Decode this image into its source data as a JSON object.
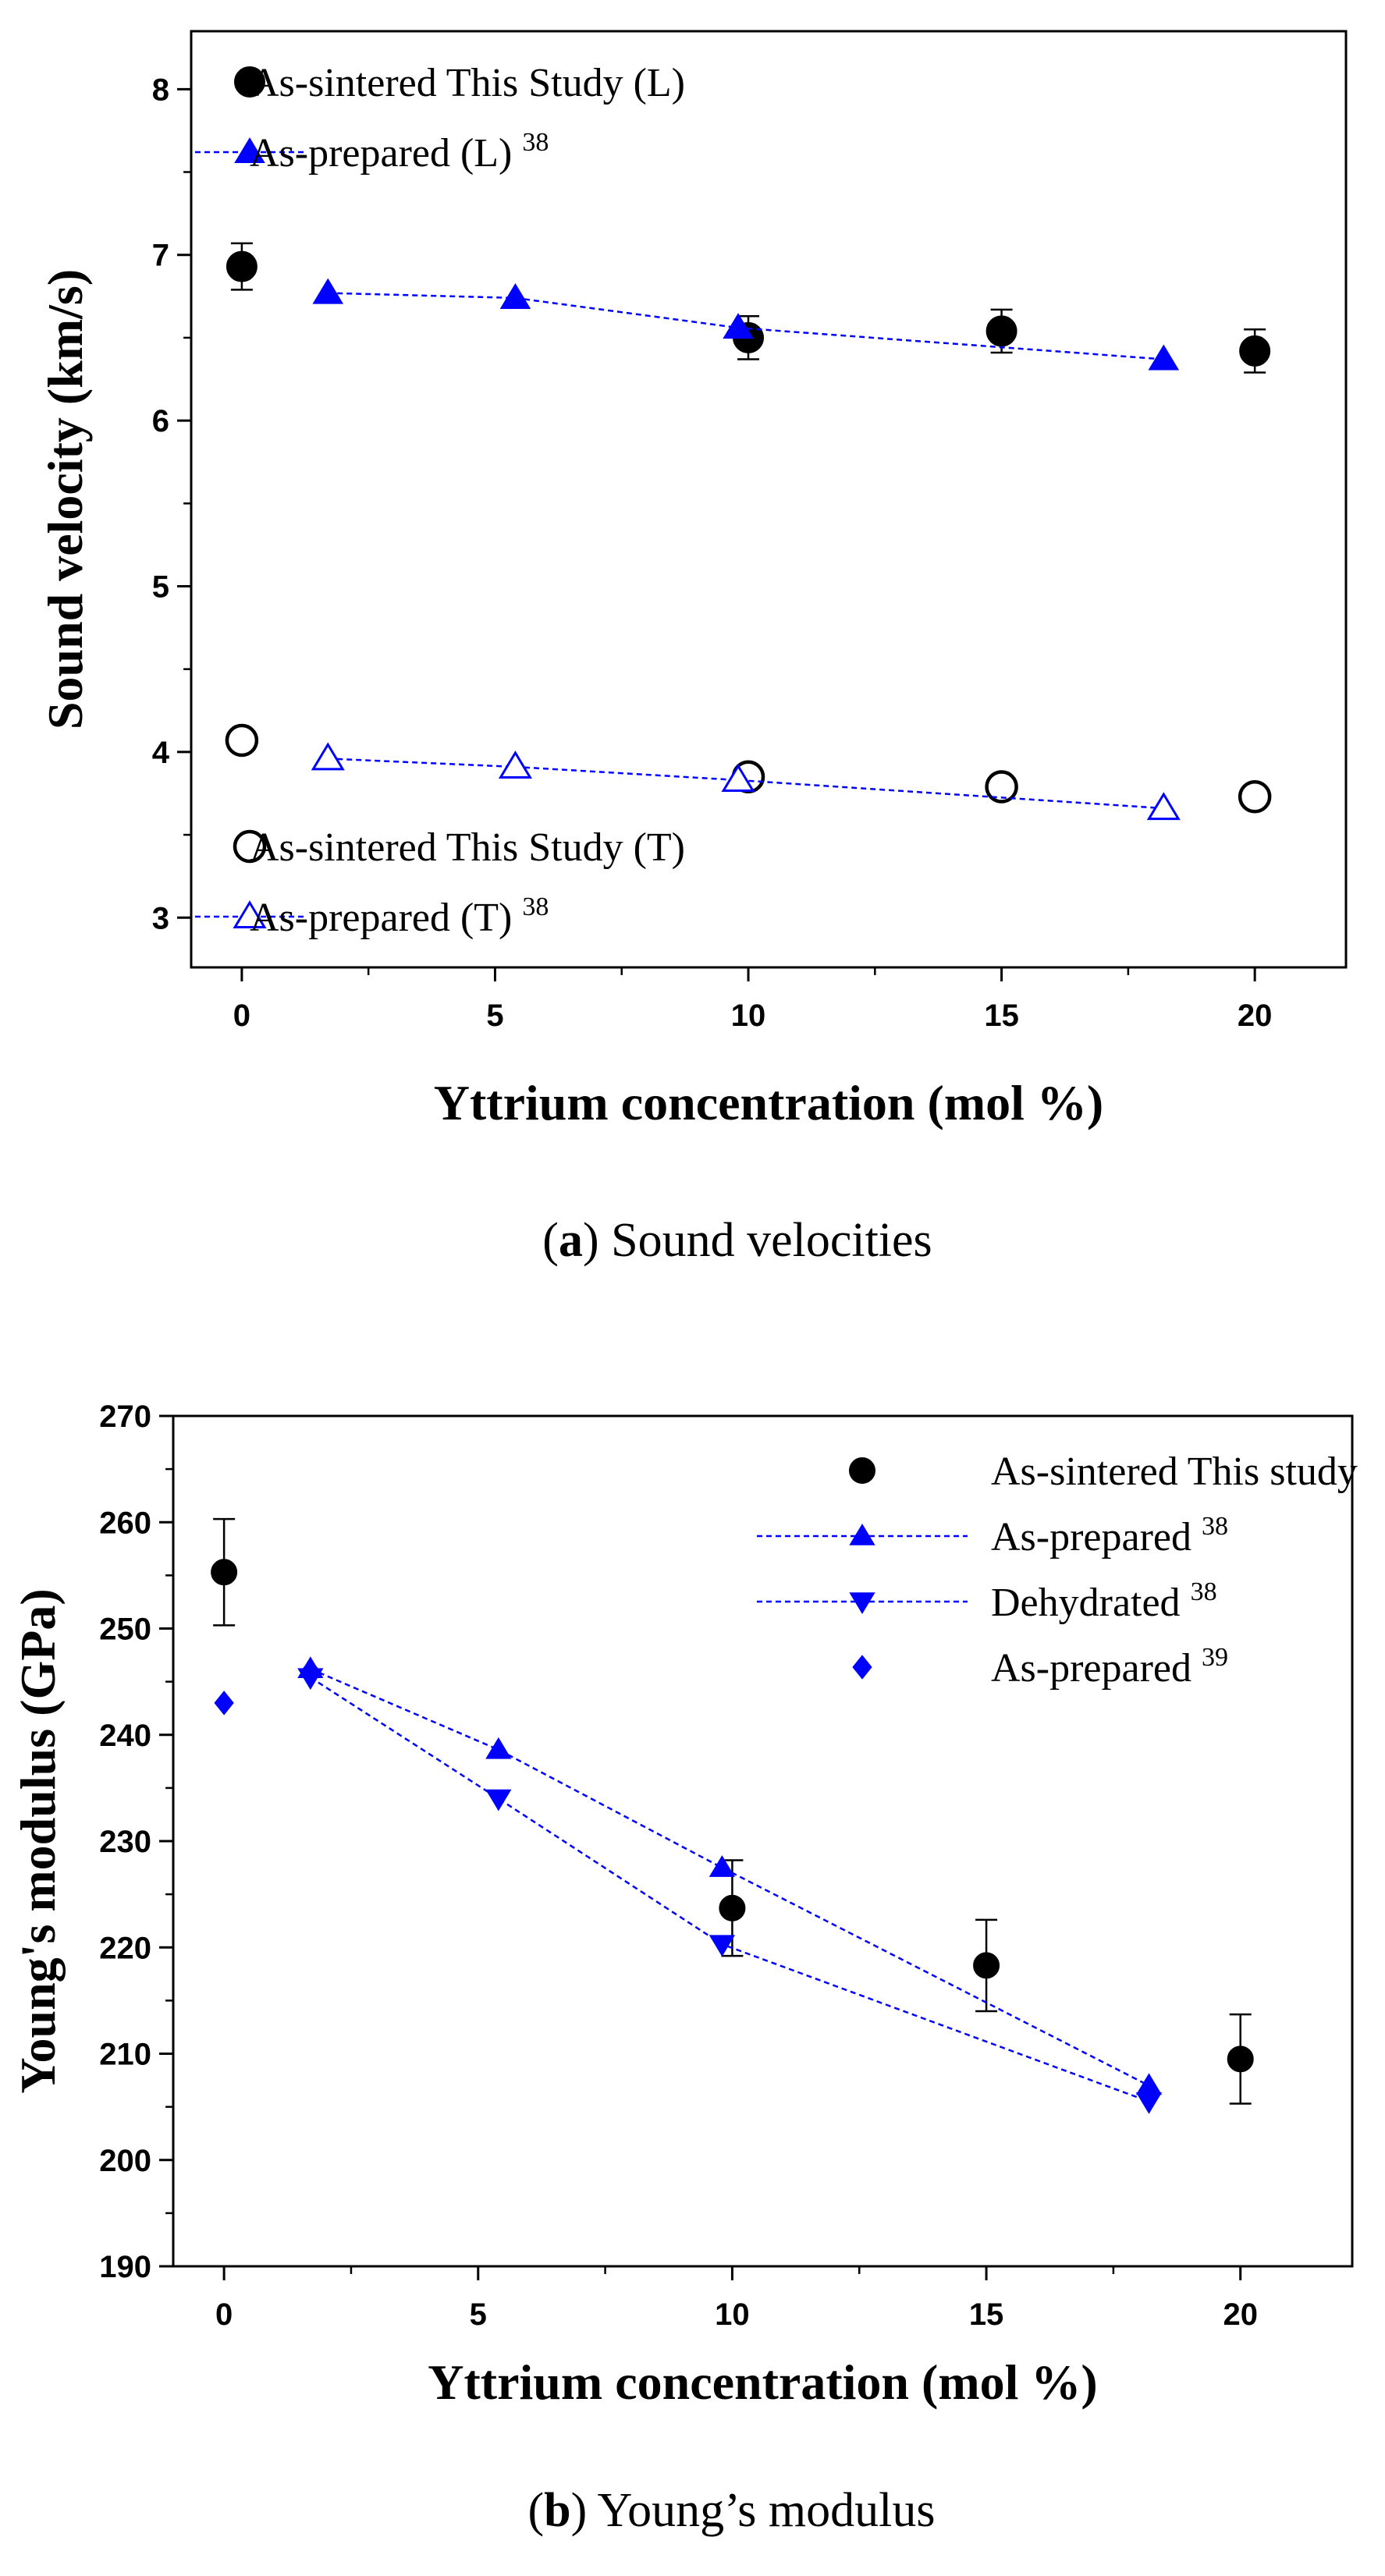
{
  "chart_data": [
    {
      "type": "scatter",
      "caption": {
        "open": "(",
        "letter": "a",
        "close": ")",
        "text": " Sound velocities"
      },
      "xlabel": "Yttrium concentration (mol %)",
      "ylabel": "Sound velocity (km/s)",
      "xlim": [
        -1.0,
        21.8
      ],
      "ylim": [
        2.7,
        8.35
      ],
      "xticks": [
        0,
        5,
        10,
        15,
        20
      ],
      "yticks": [
        3,
        4,
        5,
        6,
        7,
        8
      ],
      "grid": false,
      "legend": [
        {
          "position": "top-left",
          "entries": [
            {
              "series": 0,
              "text": "As-sintered This Study (L)",
              "sup": ""
            },
            {
              "series": 1,
              "text": "As-prepared (L) ",
              "sup": "38"
            }
          ]
        },
        {
          "position": "bottom-left",
          "entries": [
            {
              "series": 2,
              "text": "As-sintered This Study (T)",
              "sup": ""
            },
            {
              "series": 3,
              "text": "As-prepared (T) ",
              "sup": "38"
            }
          ]
        }
      ],
      "series": [
        {
          "marker": "circle-filled",
          "color": "#000000",
          "line": false,
          "x": [
            0,
            10,
            15,
            20
          ],
          "y": [
            6.93,
            6.5,
            6.54,
            6.42
          ],
          "err": [
            0.14,
            0.13,
            0.13,
            0.13
          ]
        },
        {
          "marker": "triangle-up-filled",
          "color": "#0000FF",
          "line": true,
          "x": [
            1.7,
            5.4,
            9.8,
            18.2
          ],
          "y": [
            6.77,
            6.74,
            6.56,
            6.37
          ]
        },
        {
          "marker": "circle-open",
          "color": "#000000",
          "line": false,
          "x": [
            0,
            10,
            15,
            20
          ],
          "y": [
            4.07,
            3.85,
            3.79,
            3.73
          ]
        },
        {
          "marker": "triangle-up-open",
          "color": "#0000FF",
          "line": true,
          "x": [
            1.7,
            5.4,
            9.8,
            18.2
          ],
          "y": [
            3.96,
            3.91,
            3.83,
            3.66
          ]
        }
      ]
    },
    {
      "type": "scatter",
      "caption": {
        "open": "(",
        "letter": "b",
        "close": ")",
        "text": " Young’s modulus"
      },
      "xlabel": "Yttrium concentration (mol %)",
      "ylabel": "Young's modulus (GPa)",
      "xlim": [
        -1.0,
        22.2
      ],
      "ylim": [
        190,
        270
      ],
      "xticks": [
        0,
        5,
        10,
        15,
        20
      ],
      "yticks": [
        190,
        200,
        210,
        220,
        230,
        240,
        250,
        260,
        270
      ],
      "grid": false,
      "legend": [
        {
          "position": "top-right",
          "entries": [
            {
              "series": 0,
              "text": "As-sintered This study",
              "sup": ""
            },
            {
              "series": 1,
              "text": "As-prepared ",
              "sup": "38"
            },
            {
              "series": 2,
              "text": "Dehydrated ",
              "sup": "38"
            },
            {
              "series": 3,
              "text": "As-prepared ",
              "sup": "39"
            }
          ]
        }
      ],
      "series": [
        {
          "marker": "circle-filled",
          "color": "#000000",
          "line": false,
          "x": [
            0,
            10,
            15,
            20
          ],
          "y": [
            255.3,
            223.7,
            218.3,
            209.5
          ],
          "err": [
            5.0,
            4.5,
            4.3,
            4.2
          ]
        },
        {
          "marker": "triangle-up-filled",
          "color": "#0000FF",
          "line": true,
          "x": [
            1.7,
            5.4,
            9.8,
            18.2
          ],
          "y": [
            246.2,
            238.6,
            227.5,
            207.0
          ]
        },
        {
          "marker": "triangle-down-filled",
          "color": "#0000FF",
          "line": true,
          "x": [
            1.7,
            5.4,
            9.8,
            18.2
          ],
          "y": [
            245.4,
            234.0,
            220.3,
            205.5
          ]
        },
        {
          "marker": "diamond-filled",
          "color": "#0000FF",
          "line": false,
          "x": [
            0,
            1.7,
            18.2
          ],
          "y": [
            243.0,
            246.0,
            206.2
          ]
        }
      ]
    }
  ]
}
